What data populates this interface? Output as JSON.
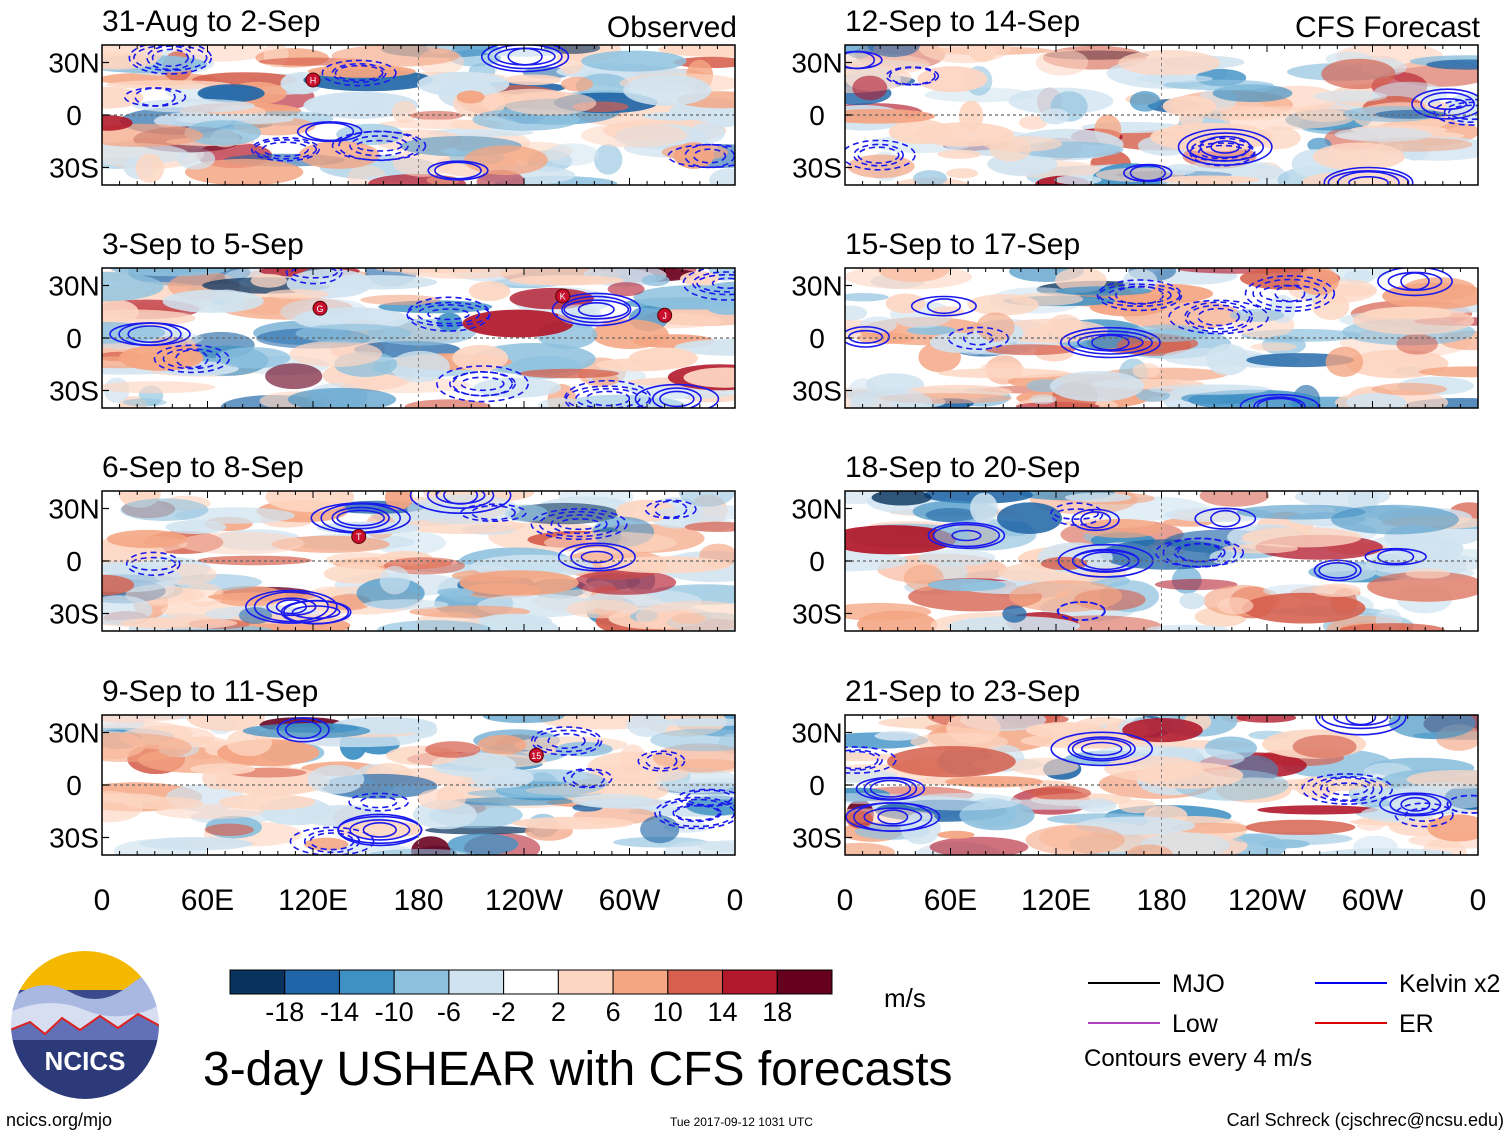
{
  "chart_data": {
    "type": "heatmap",
    "title": "3-day USHEAR with CFS forecasts",
    "variable": "USHEAR",
    "units": "m/s",
    "contour_note": "Contours every 4 m/s",
    "section_labels": {
      "observed": "Observed",
      "forecast": "CFS Forecast"
    },
    "x_ticks": [
      "0",
      "60E",
      "120E",
      "180",
      "120W",
      "60W",
      "0"
    ],
    "y_ticks": [
      "30N",
      "0",
      "30S"
    ],
    "lon_range": [
      0,
      360
    ],
    "lat_range": [
      -40,
      40
    ],
    "colorbar": {
      "levels": [
        -18,
        -14,
        -10,
        -6,
        -2,
        2,
        6,
        10,
        14,
        18
      ],
      "labels": [
        "-18",
        "-14",
        "-10",
        "-6",
        "-2",
        "2",
        "6",
        "10",
        "14",
        "18"
      ],
      "colors": [
        "#08335e",
        "#1f65a7",
        "#3f91c4",
        "#8ec1de",
        "#d0e3f0",
        "#ffffff",
        "#fdd6c2",
        "#f4a582",
        "#d6604d",
        "#b2182b",
        "#67001f"
      ]
    },
    "legend": [
      {
        "name": "MJO",
        "color": "#000000"
      },
      {
        "name": "Kelvin x2",
        "color": "#0000ee"
      },
      {
        "name": "Low",
        "color": "#b040c0"
      },
      {
        "name": "ER",
        "color": "#dd0000"
      }
    ],
    "panels": [
      {
        "title": "31-Aug to 2-Sep",
        "group": "observed",
        "col": 0,
        "row": 0,
        "storms": [
          {
            "label": "H",
            "lon": 120,
            "lat": 20
          }
        ]
      },
      {
        "title": "3-Sep to 5-Sep",
        "group": "observed",
        "col": 0,
        "row": 1,
        "storms": [
          {
            "label": "G",
            "lon": 124,
            "lat": 17
          },
          {
            "label": "K",
            "lon": 262,
            "lat": 24
          },
          {
            "label": "J",
            "lon": 320,
            "lat": 13
          }
        ]
      },
      {
        "title": "6-Sep to 8-Sep",
        "group": "observed",
        "col": 0,
        "row": 2,
        "storms": [
          {
            "label": "T",
            "lon": 146,
            "lat": 14
          }
        ]
      },
      {
        "title": "9-Sep to 11-Sep",
        "group": "observed",
        "col": 0,
        "row": 3,
        "storms": [
          {
            "label": "15",
            "lon": 247,
            "lat": 17
          }
        ]
      },
      {
        "title": "12-Sep to 14-Sep",
        "group": "forecast",
        "col": 1,
        "row": 0,
        "storms": []
      },
      {
        "title": "15-Sep to 17-Sep",
        "group": "forecast",
        "col": 1,
        "row": 1,
        "storms": []
      },
      {
        "title": "18-Sep to 20-Sep",
        "group": "forecast",
        "col": 1,
        "row": 2,
        "storms": []
      },
      {
        "title": "21-Sep to 23-Sep",
        "group": "forecast",
        "col": 1,
        "row": 3,
        "storms": []
      }
    ]
  },
  "header": {
    "logo_text": "NCICS"
  },
  "footer": {
    "site": "ncics.org/mjo",
    "timestamp": "Tue 2017-09-12 1031 UTC",
    "author": "Carl Schreck (cjschrec@ncsu.edu)"
  }
}
